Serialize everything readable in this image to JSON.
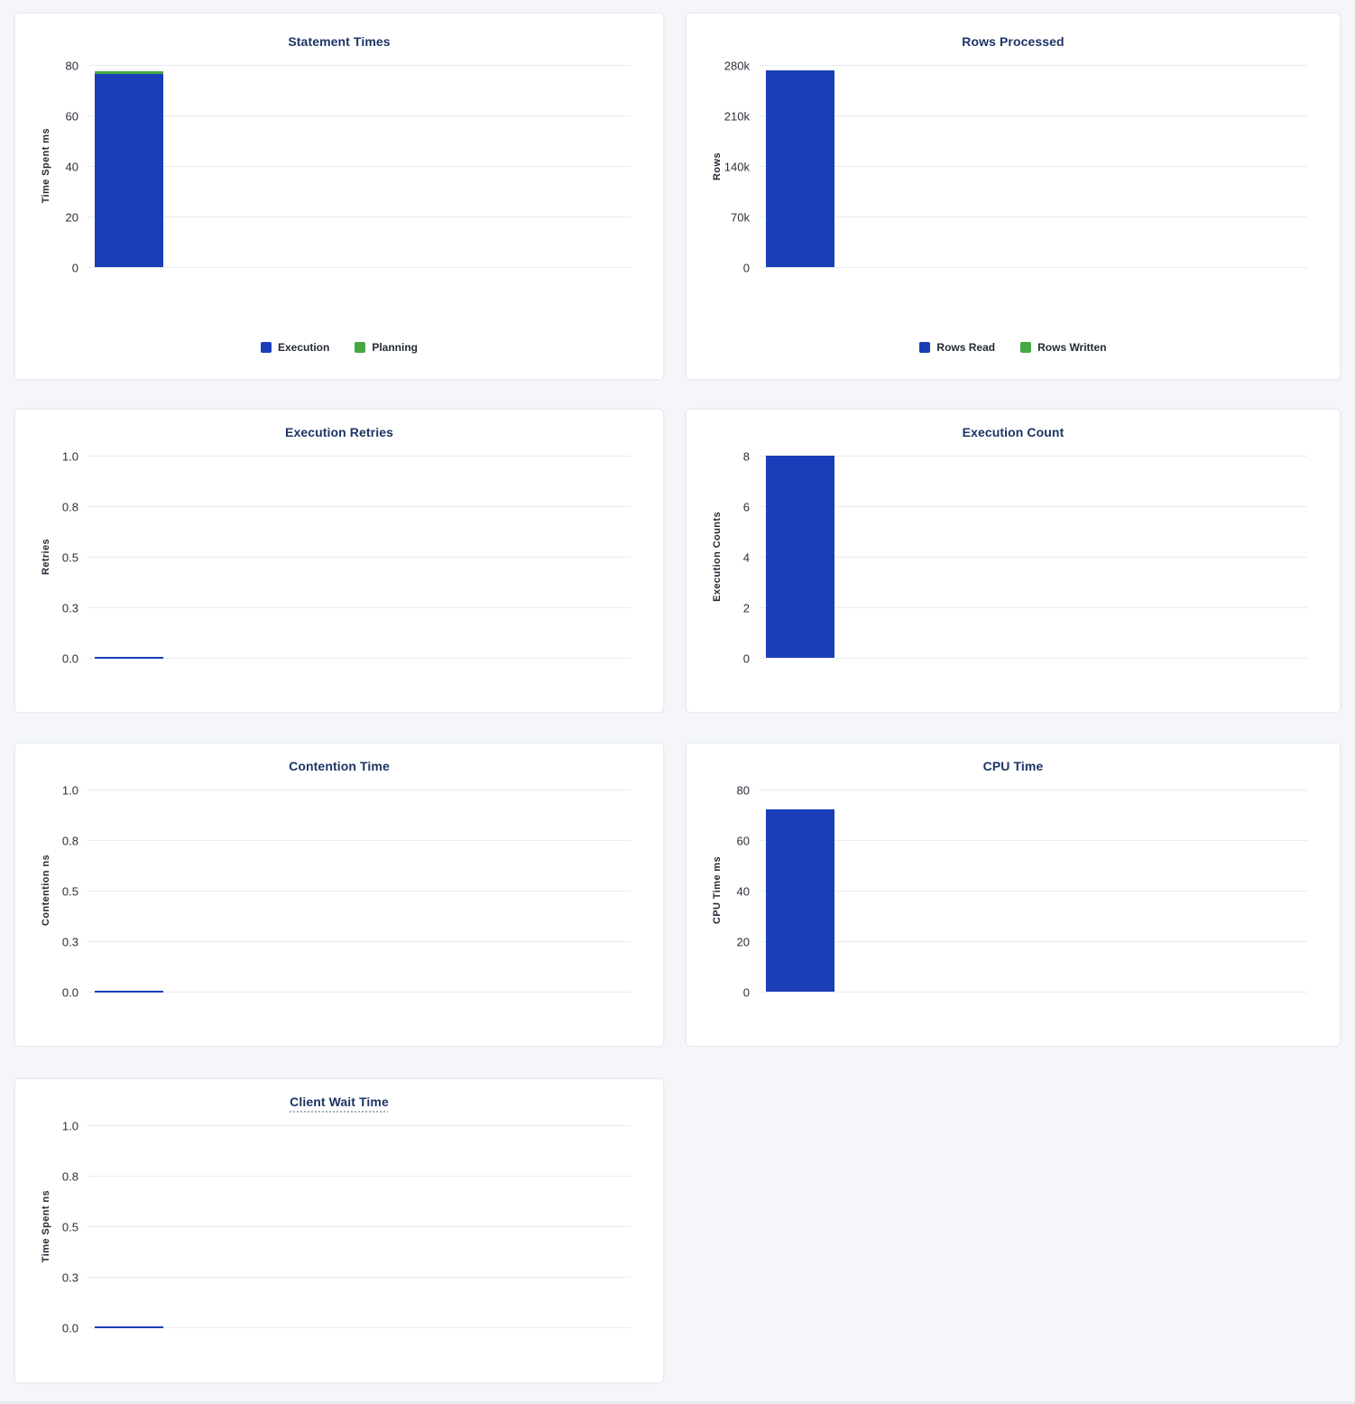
{
  "colors": {
    "bar_blue": "#1a3db8",
    "bar_green": "#46a843",
    "title_navy": "#1c3564",
    "tick_text": "#2b3039",
    "gridline": "#e9ebf1",
    "page_background": "#f4f6fa",
    "card_background": "#ffffff"
  },
  "chart_data": [
    {
      "type": "bar",
      "title": "Statement Times",
      "ylabel": "Time Spent ms",
      "xlabel": "",
      "yticks": [
        "80",
        "60",
        "40",
        "20",
        "0"
      ],
      "ylim": [
        0,
        80
      ],
      "ymax": 80,
      "grid": true,
      "stacked": true,
      "categories": [
        ""
      ],
      "series": [
        {
          "name": "Execution",
          "value": 76.3,
          "color": "#1a3db8"
        },
        {
          "name": "Planning",
          "value": 1.1,
          "color": "#46a843"
        }
      ],
      "legend": [
        "Execution",
        "Planning"
      ],
      "legend_position": "bottom",
      "title_underline": false
    },
    {
      "type": "bar",
      "title": "Rows Processed",
      "ylabel": "Rows",
      "xlabel": "",
      "yticks": [
        "280k",
        "210k",
        "140k",
        "70k",
        "0"
      ],
      "ylim": [
        0,
        280000
      ],
      "ymax": 280000,
      "grid": true,
      "stacked": true,
      "categories": [
        ""
      ],
      "series": [
        {
          "name": "Rows Read",
          "value": 273000,
          "color": "#1a3db8"
        },
        {
          "name": "Rows Written",
          "value": 0,
          "color": "#46a843"
        }
      ],
      "legend": [
        "Rows Read",
        "Rows Written"
      ],
      "legend_position": "bottom",
      "title_underline": false
    },
    {
      "type": "bar",
      "title": "Execution Retries",
      "ylabel": "Retries",
      "xlabel": "",
      "yticks": [
        "1.0",
        "0.8",
        "0.5",
        "0.3",
        "0.0"
      ],
      "ylim": [
        0,
        1
      ],
      "ymax": 1,
      "grid": true,
      "stacked": false,
      "categories": [
        ""
      ],
      "series": [
        {
          "name": "Retries",
          "value": 0,
          "color": "#1a3db8"
        }
      ],
      "legend": null,
      "legend_position": "none",
      "title_underline": false
    },
    {
      "type": "bar",
      "title": "Execution Count",
      "ylabel": "Execution Counts",
      "xlabel": "",
      "yticks": [
        "8",
        "6",
        "4",
        "2",
        "0"
      ],
      "ylim": [
        0,
        8
      ],
      "ymax": 8,
      "grid": true,
      "stacked": false,
      "categories": [
        ""
      ],
      "series": [
        {
          "name": "Execution Count",
          "value": 8,
          "color": "#1a3db8"
        }
      ],
      "legend": null,
      "legend_position": "none",
      "title_underline": false
    },
    {
      "type": "bar",
      "title": "Contention Time",
      "ylabel": "Contention ns",
      "xlabel": "",
      "yticks": [
        "1.0",
        "0.8",
        "0.5",
        "0.3",
        "0.0"
      ],
      "ylim": [
        0,
        1
      ],
      "ymax": 1,
      "grid": true,
      "stacked": false,
      "categories": [
        ""
      ],
      "series": [
        {
          "name": "Contention",
          "value": 0,
          "color": "#1a3db8"
        }
      ],
      "legend": null,
      "legend_position": "none",
      "title_underline": false
    },
    {
      "type": "bar",
      "title": "CPU Time",
      "ylabel": "CPU Time ms",
      "xlabel": "",
      "yticks": [
        "80",
        "60",
        "40",
        "20",
        "0"
      ],
      "ylim": [
        0,
        80
      ],
      "ymax": 80,
      "grid": true,
      "stacked": false,
      "categories": [
        ""
      ],
      "series": [
        {
          "name": "CPU Time",
          "value": 72,
          "color": "#1a3db8"
        }
      ],
      "legend": null,
      "legend_position": "none",
      "title_underline": false
    },
    {
      "type": "bar",
      "title": "Client Wait Time",
      "ylabel": "Time Spent ns",
      "xlabel": "",
      "yticks": [
        "1.0",
        "0.8",
        "0.5",
        "0.3",
        "0.0"
      ],
      "ylim": [
        0,
        1
      ],
      "ymax": 1,
      "grid": true,
      "stacked": false,
      "categories": [
        ""
      ],
      "series": [
        {
          "name": "Client Wait",
          "value": 0,
          "color": "#1a3db8"
        }
      ],
      "legend": null,
      "legend_position": "none",
      "title_underline": true
    }
  ]
}
